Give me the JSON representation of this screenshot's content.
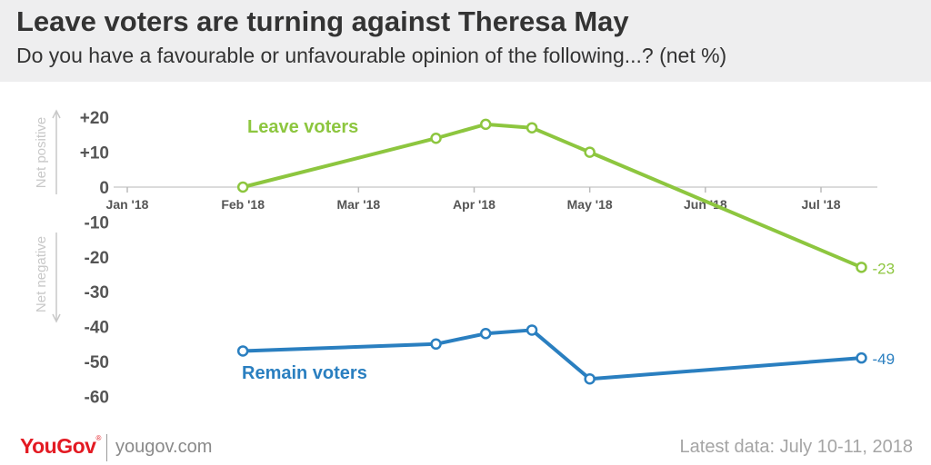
{
  "colors": {
    "leave": "#8dc63f",
    "remain": "#2a7fc0",
    "axis_text": "#555555",
    "muted": "#c8c8c8",
    "brand": "#e31b23"
  },
  "header": {
    "title": "Leave voters are turning against Theresa May",
    "subtitle": "Do you have a favourable or unfavourable opinion of the following...? (net %)"
  },
  "chart_data": {
    "type": "line",
    "title": "Leave voters are turning against Theresa May",
    "subtitle": "Do you have a favourable or unfavourable opinion of the following...? (net %)",
    "x_ticks": [
      {
        "label": "Jan '18",
        "month": 0
      },
      {
        "label": "Feb '18",
        "month": 1
      },
      {
        "label": "Mar '18",
        "month": 2
      },
      {
        "label": "Apr '18",
        "month": 3
      },
      {
        "label": "May '18",
        "month": 4
      },
      {
        "label": "Jun '18",
        "month": 5
      },
      {
        "label": "Jul '18",
        "month": 6
      }
    ],
    "xlim": [
      0,
      6.7
    ],
    "y_ticks": [
      {
        "value": 20,
        "label": "+20"
      },
      {
        "value": 10,
        "label": "+10"
      },
      {
        "value": 0,
        "label": "0"
      },
      {
        "value": -10,
        "label": "-10"
      },
      {
        "value": -20,
        "label": "-20"
      },
      {
        "value": -30,
        "label": "-30"
      },
      {
        "value": -40,
        "label": "-40"
      },
      {
        "value": -50,
        "label": "-50"
      },
      {
        "value": -60,
        "label": "-60"
      }
    ],
    "ylim": [
      -60,
      20
    ],
    "ylabel_positive": "Net positive",
    "ylabel_negative": "Net negative",
    "series": [
      {
        "name": "Leave voters",
        "color_key": "leave",
        "x": [
          1.0,
          2.67,
          3.1,
          3.5,
          4.0,
          6.35
        ],
        "y": [
          0,
          14,
          18,
          17,
          10,
          -23
        ],
        "end_label": "-23"
      },
      {
        "name": "Remain voters",
        "color_key": "remain",
        "x": [
          1.0,
          2.67,
          3.1,
          3.5,
          4.0,
          6.35
        ],
        "y": [
          -47,
          -45,
          -42,
          -41,
          -55,
          -49
        ],
        "end_label": "-49"
      }
    ]
  },
  "footer": {
    "brand": "YouGov",
    "registered": "®",
    "url": "yougov.com",
    "latest": "Latest data: July 10-11, 2018"
  }
}
